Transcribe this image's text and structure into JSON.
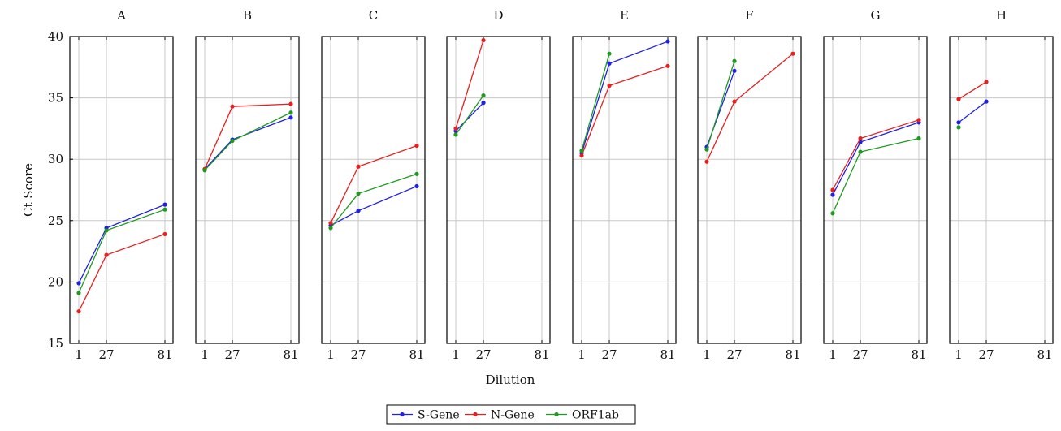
{
  "chart_data": {
    "type": "line",
    "ylabel": "Ct Score",
    "xlabel": "Dilution",
    "ylim": [
      15,
      40
    ],
    "yticks": [
      15,
      20,
      25,
      30,
      35,
      40
    ],
    "x_categories": [
      "1",
      "27",
      "81"
    ],
    "grid": true,
    "legend_position": "bottom-center",
    "series_meta": [
      {
        "name": "S-Gene",
        "color": "#1f1fe6"
      },
      {
        "name": "N-Gene",
        "color": "#e61f1f"
      },
      {
        "name": "ORF1ab",
        "color": "#1f9a1f"
      }
    ],
    "panels": [
      {
        "title": "A",
        "series": {
          "S-Gene": [
            19.9,
            24.4,
            26.3
          ],
          "N-Gene": [
            17.6,
            22.2,
            23.9
          ],
          "ORF1ab": [
            19.1,
            24.2,
            25.9
          ]
        }
      },
      {
        "title": "B",
        "series": {
          "S-Gene": [
            29.2,
            31.6,
            33.4
          ],
          "N-Gene": [
            29.2,
            34.3,
            34.5
          ],
          "ORF1ab": [
            29.1,
            31.5,
            33.8
          ]
        }
      },
      {
        "title": "C",
        "series": {
          "S-Gene": [
            24.6,
            25.8,
            27.8
          ],
          "N-Gene": [
            24.8,
            29.4,
            31.1
          ],
          "ORF1ab": [
            24.4,
            27.2,
            28.8
          ]
        }
      },
      {
        "title": "D",
        "series": {
          "S-Gene": [
            32.3,
            34.6,
            null
          ],
          "N-Gene": [
            32.5,
            39.7,
            null
          ],
          "ORF1ab": [
            32.0,
            35.2,
            null
          ]
        }
      },
      {
        "title": "E",
        "series": {
          "S-Gene": [
            30.5,
            37.8,
            39.6
          ],
          "N-Gene": [
            30.3,
            36.0,
            37.6
          ],
          "ORF1ab": [
            30.7,
            38.6,
            null
          ]
        }
      },
      {
        "title": "F",
        "series": {
          "S-Gene": [
            31.0,
            37.2,
            null
          ],
          "N-Gene": [
            29.8,
            34.7,
            38.6
          ],
          "ORF1ab": [
            30.8,
            38.0,
            null
          ]
        }
      },
      {
        "title": "G",
        "series": {
          "S-Gene": [
            27.1,
            31.4,
            33.0
          ],
          "N-Gene": [
            27.5,
            31.7,
            33.2
          ],
          "ORF1ab": [
            25.6,
            30.6,
            31.7
          ]
        }
      },
      {
        "title": "H",
        "series": {
          "S-Gene": [
            33.0,
            34.7,
            null
          ],
          "N-Gene": [
            34.9,
            36.3,
            null
          ],
          "ORF1ab": [
            32.6,
            null,
            null
          ]
        }
      }
    ]
  }
}
